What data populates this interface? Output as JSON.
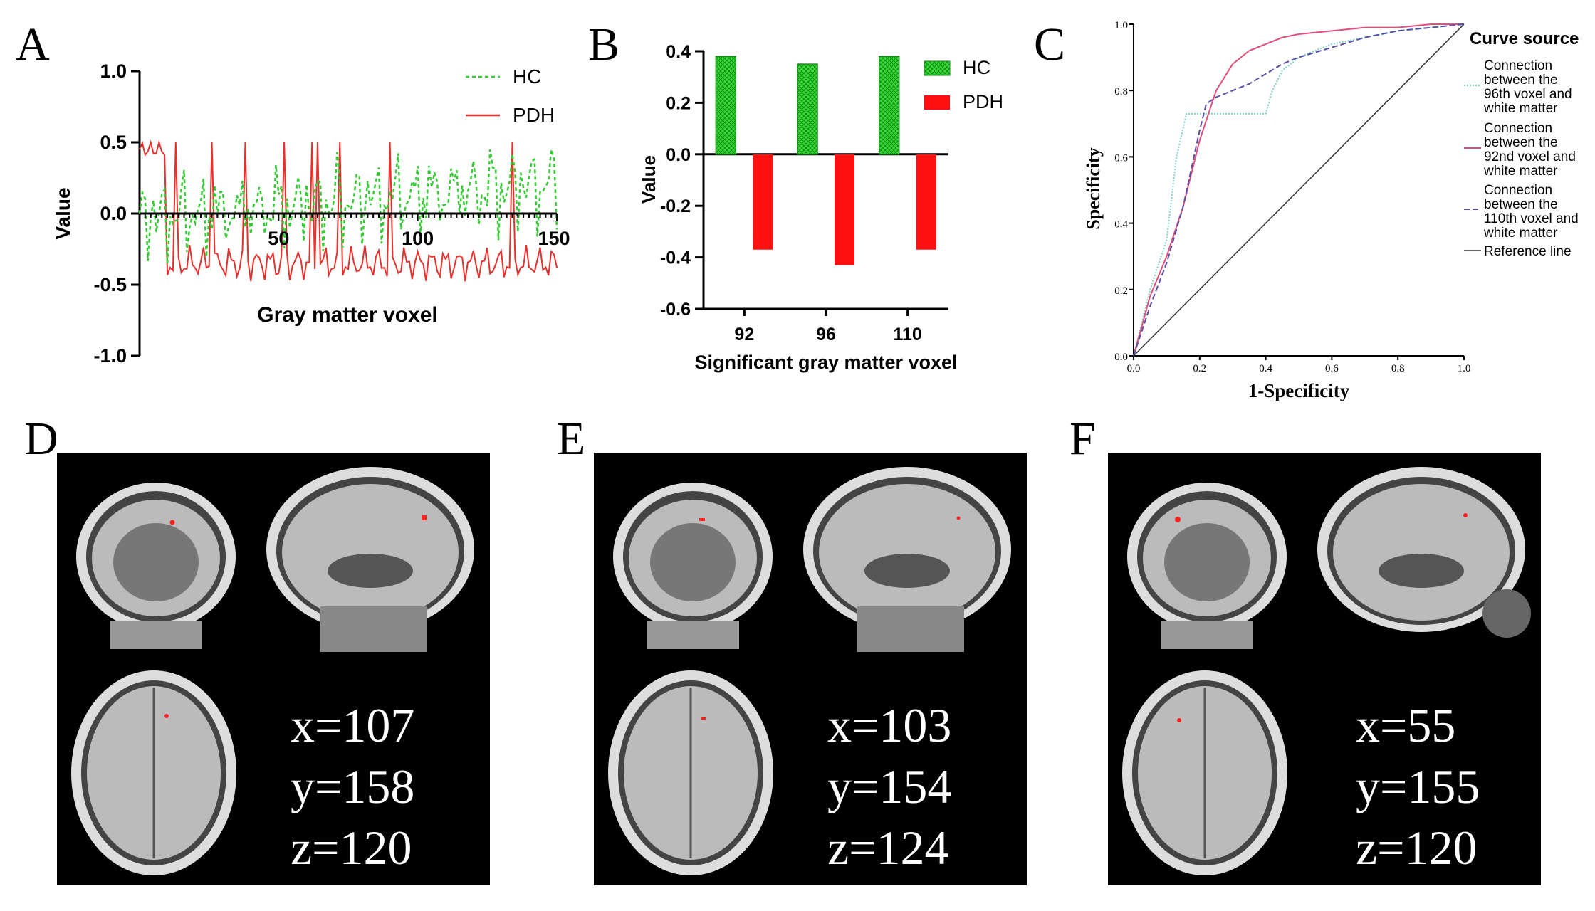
{
  "panels": {
    "a": "A",
    "b": "B",
    "c": "C",
    "d": "D",
    "e": "E",
    "f": "F"
  },
  "chart_data": [
    {
      "type": "line",
      "panel": "A",
      "xlabel": "Gray matter  voxel",
      "ylabel": "Value",
      "xlim": [
        0,
        150
      ],
      "ylim": [
        -1.0,
        1.0
      ],
      "xticks": [
        "50",
        "100",
        "150"
      ],
      "yticks": [
        "1.0",
        "0.5",
        "0.0",
        "-0.5",
        "-1.0"
      ],
      "legend": "top-right",
      "series": [
        {
          "name": "HC",
          "style": "dashed",
          "color": "#33cc33"
        },
        {
          "name": "PDH",
          "style": "solid",
          "color": "#e8312d"
        }
      ]
    },
    {
      "type": "bar",
      "panel": "B",
      "xlabel": "Significant gray matter voxel",
      "ylabel": "Value",
      "ylim": [
        -0.6,
        0.4
      ],
      "yticks": [
        "0.4",
        "0.2",
        "0.0",
        "-0.2",
        "-0.4",
        "-0.6"
      ],
      "categories": [
        "92",
        "96",
        "110"
      ],
      "legend": "top-right",
      "series": [
        {
          "name": "HC",
          "color": "#33dd33",
          "values": [
            0.38,
            0.35,
            0.38
          ]
        },
        {
          "name": "PDH",
          "color": "#ff1111",
          "values": [
            -0.37,
            -0.43,
            -0.37
          ]
        }
      ]
    },
    {
      "type": "line",
      "panel": "C",
      "xlabel": "1-Specificity",
      "ylabel": "Specificity",
      "xlim": [
        0,
        1
      ],
      "ylim": [
        0,
        1
      ],
      "xticks": [
        "0.0",
        "0.2",
        "0.4",
        "0.6",
        "0.8",
        "1.0"
      ],
      "yticks": [
        "0.0",
        "0.2",
        "0.4",
        "0.6",
        "0.8",
        "1.0"
      ],
      "legend_title": "Curve source",
      "legend": "right",
      "series": [
        {
          "name": "Connection between the 96th voxel and white matter",
          "color": "#7fd4c8",
          "style": "dotted",
          "x": [
            0,
            0.05,
            0.1,
            0.13,
            0.16,
            0.2,
            0.25,
            0.3,
            0.35,
            0.4,
            0.42,
            0.45,
            0.5,
            0.6,
            0.7,
            0.8,
            0.9,
            1.0
          ],
          "y": [
            0,
            0.2,
            0.35,
            0.6,
            0.73,
            0.73,
            0.73,
            0.73,
            0.73,
            0.73,
            0.8,
            0.86,
            0.9,
            0.94,
            0.96,
            0.98,
            0.99,
            1.0
          ]
        },
        {
          "name": "Connection between the 92nd voxel and white matter",
          "color": "#e0507a",
          "style": "solid",
          "x": [
            0,
            0.05,
            0.1,
            0.15,
            0.2,
            0.25,
            0.3,
            0.35,
            0.4,
            0.45,
            0.5,
            0.6,
            0.7,
            0.8,
            0.9,
            1.0
          ],
          "y": [
            0,
            0.18,
            0.3,
            0.45,
            0.65,
            0.8,
            0.88,
            0.92,
            0.94,
            0.96,
            0.97,
            0.98,
            0.99,
            0.99,
            1.0,
            1.0
          ]
        },
        {
          "name": "Connection between the 110th voxel and white matter",
          "color": "#5a4da8",
          "style": "dashed",
          "x": [
            0,
            0.05,
            0.1,
            0.15,
            0.2,
            0.22,
            0.25,
            0.3,
            0.35,
            0.4,
            0.45,
            0.5,
            0.6,
            0.7,
            0.8,
            0.9,
            1.0
          ],
          "y": [
            0,
            0.15,
            0.28,
            0.45,
            0.68,
            0.76,
            0.78,
            0.8,
            0.82,
            0.85,
            0.88,
            0.9,
            0.93,
            0.96,
            0.98,
            0.99,
            1.0
          ]
        },
        {
          "name": "Reference line",
          "color": "#333333",
          "style": "solid",
          "x": [
            0,
            1
          ],
          "y": [
            0,
            1
          ]
        }
      ]
    }
  ],
  "legend_a": {
    "hc": "HC",
    "pdh": "PDH"
  },
  "legend_b": {
    "hc": "HC",
    "pdh": "PDH"
  },
  "legend_c": {
    "title": "Curve source",
    "s1": [
      "Connection",
      "between the",
      "96th voxel and",
      "white matter"
    ],
    "s2": [
      "Connection",
      "between the",
      "92nd voxel and",
      "white matter"
    ],
    "s3": [
      "Connection",
      "between the",
      "110th voxel and",
      "white matter"
    ],
    "s4": "Reference line"
  },
  "coords": {
    "d": {
      "x": "x=107",
      "y": "y=158",
      "z": "z=120"
    },
    "e": {
      "x": "x=103",
      "y": "y=154",
      "z": "z=124"
    },
    "f": {
      "x": "x=55",
      "y": "y=155",
      "z": "z=120"
    }
  }
}
